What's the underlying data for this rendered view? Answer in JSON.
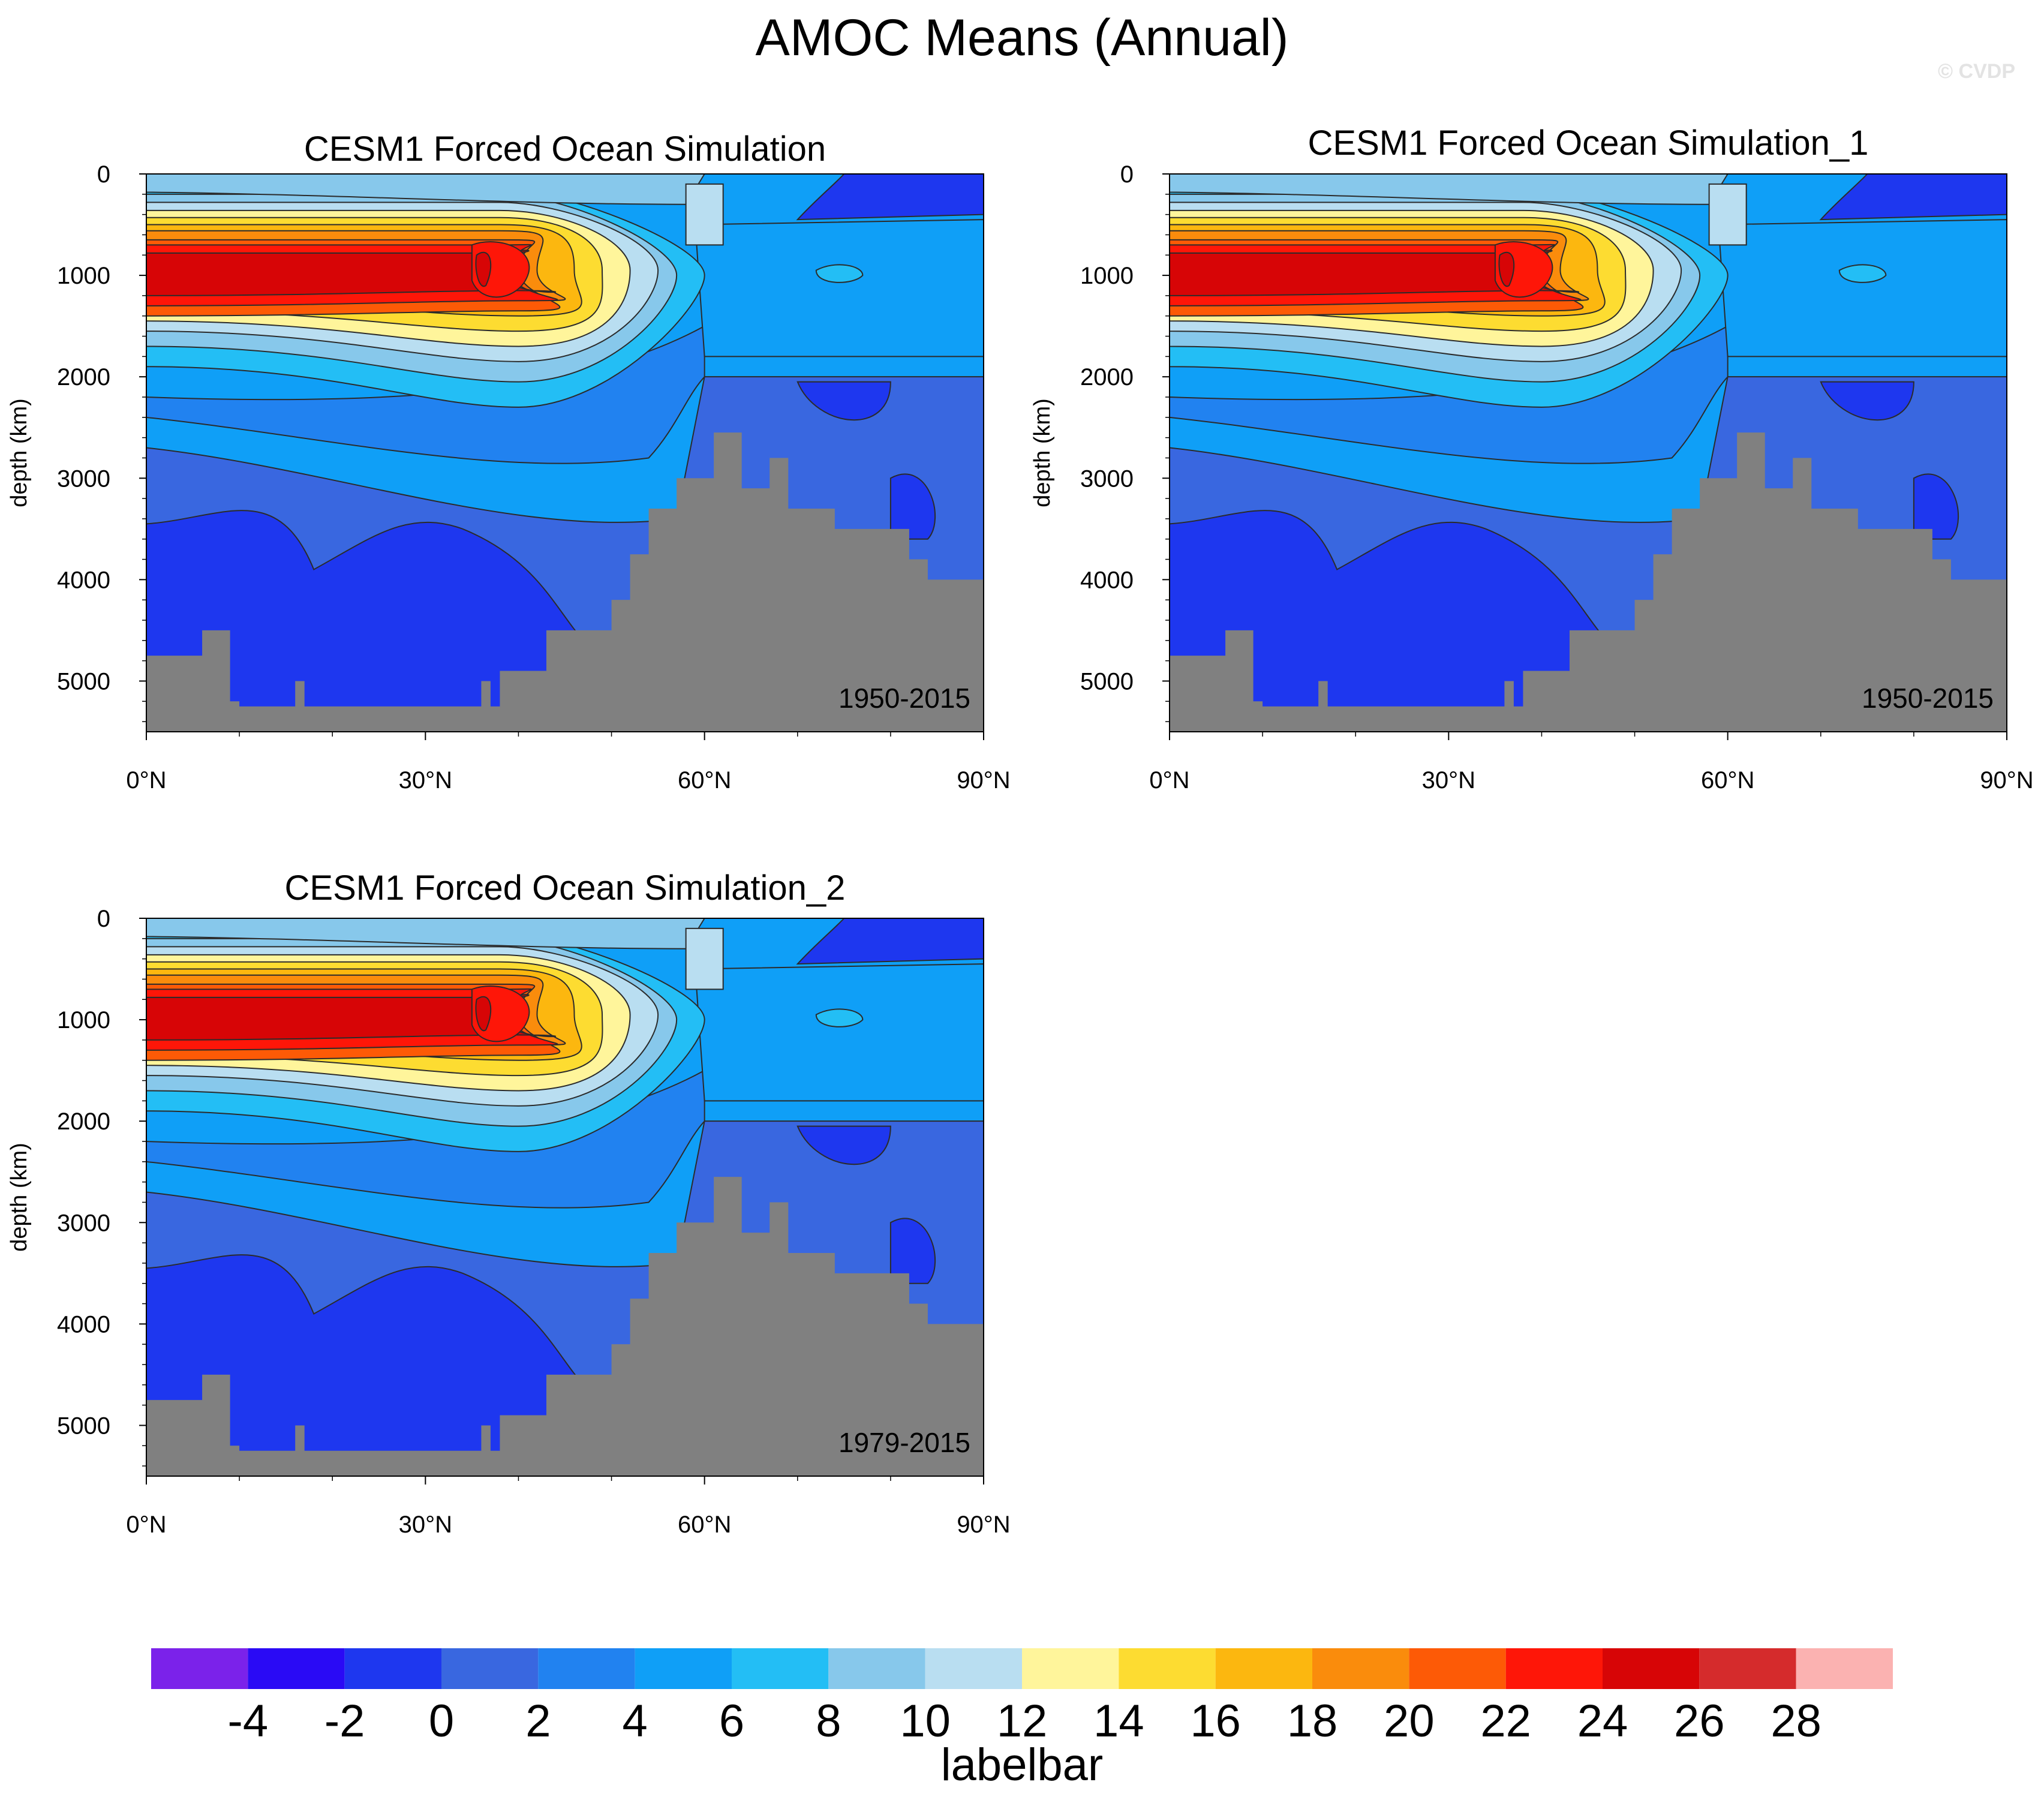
{
  "title": "AMOC Means (Annual)",
  "watermark": "© CVDP",
  "chart_data": [
    {
      "type": "heatmap",
      "title": "CESM1 Forced Ocean Simulation",
      "period": "1950-2015",
      "ylabel": "depth (km)",
      "xlabel": "",
      "x_ticks": [
        "0°N",
        "30°N",
        "60°N",
        "90°N"
      ],
      "y_ticks": [
        "0",
        "1000",
        "2000",
        "3000",
        "4000",
        "5000"
      ],
      "xlim": [
        0,
        90
      ],
      "ylim": [
        5500,
        0
      ],
      "cell_max": {
        "lat": 37,
        "depth": 950,
        "value": 25
      }
    },
    {
      "type": "heatmap",
      "title": "CESM1 Forced Ocean Simulation_1",
      "period": "1950-2015",
      "ylabel": "depth (km)",
      "xlabel": "",
      "x_ticks": [
        "0°N",
        "30°N",
        "60°N",
        "90°N"
      ],
      "y_ticks": [
        "0",
        "1000",
        "2000",
        "3000",
        "4000",
        "5000"
      ],
      "xlim": [
        0,
        90
      ],
      "ylim": [
        5500,
        0
      ],
      "cell_max": {
        "lat": 37,
        "depth": 950,
        "value": 25
      }
    },
    {
      "type": "heatmap",
      "title": "CESM1 Forced Ocean Simulation_2",
      "period": "1979-2015",
      "ylabel": "depth (km)",
      "xlabel": "",
      "x_ticks": [
        "0°N",
        "30°N",
        "60°N",
        "90°N"
      ],
      "y_ticks": [
        "0",
        "1000",
        "2000",
        "3000",
        "4000",
        "5000"
      ],
      "xlim": [
        0,
        90
      ],
      "ylim": [
        5500,
        0
      ],
      "cell_max": {
        "lat": 37,
        "depth": 950,
        "value": 24
      }
    }
  ],
  "labelbar": {
    "title": "labelbar",
    "tick_labels": [
      "-4",
      "-2",
      "0",
      "2",
      "4",
      "6",
      "8",
      "10",
      "12",
      "14",
      "16",
      "18",
      "20",
      "22",
      "24",
      "26",
      "28"
    ],
    "colors": [
      "#7b22ea",
      "#2a0af5",
      "#1e37ef",
      "#3967e0",
      "#2182f0",
      "#0f9ff7",
      "#23bef5",
      "#87c8eb",
      "#b9def1",
      "#fff59b",
      "#fddc31",
      "#fcb70f",
      "#fa8c0c",
      "#fd5a06",
      "#fe1608",
      "#d70506",
      "#d52b2c",
      "#fbb2b1"
    ]
  },
  "colors": {
    "land": "#808080",
    "contour_line": "#2b2b2b"
  }
}
